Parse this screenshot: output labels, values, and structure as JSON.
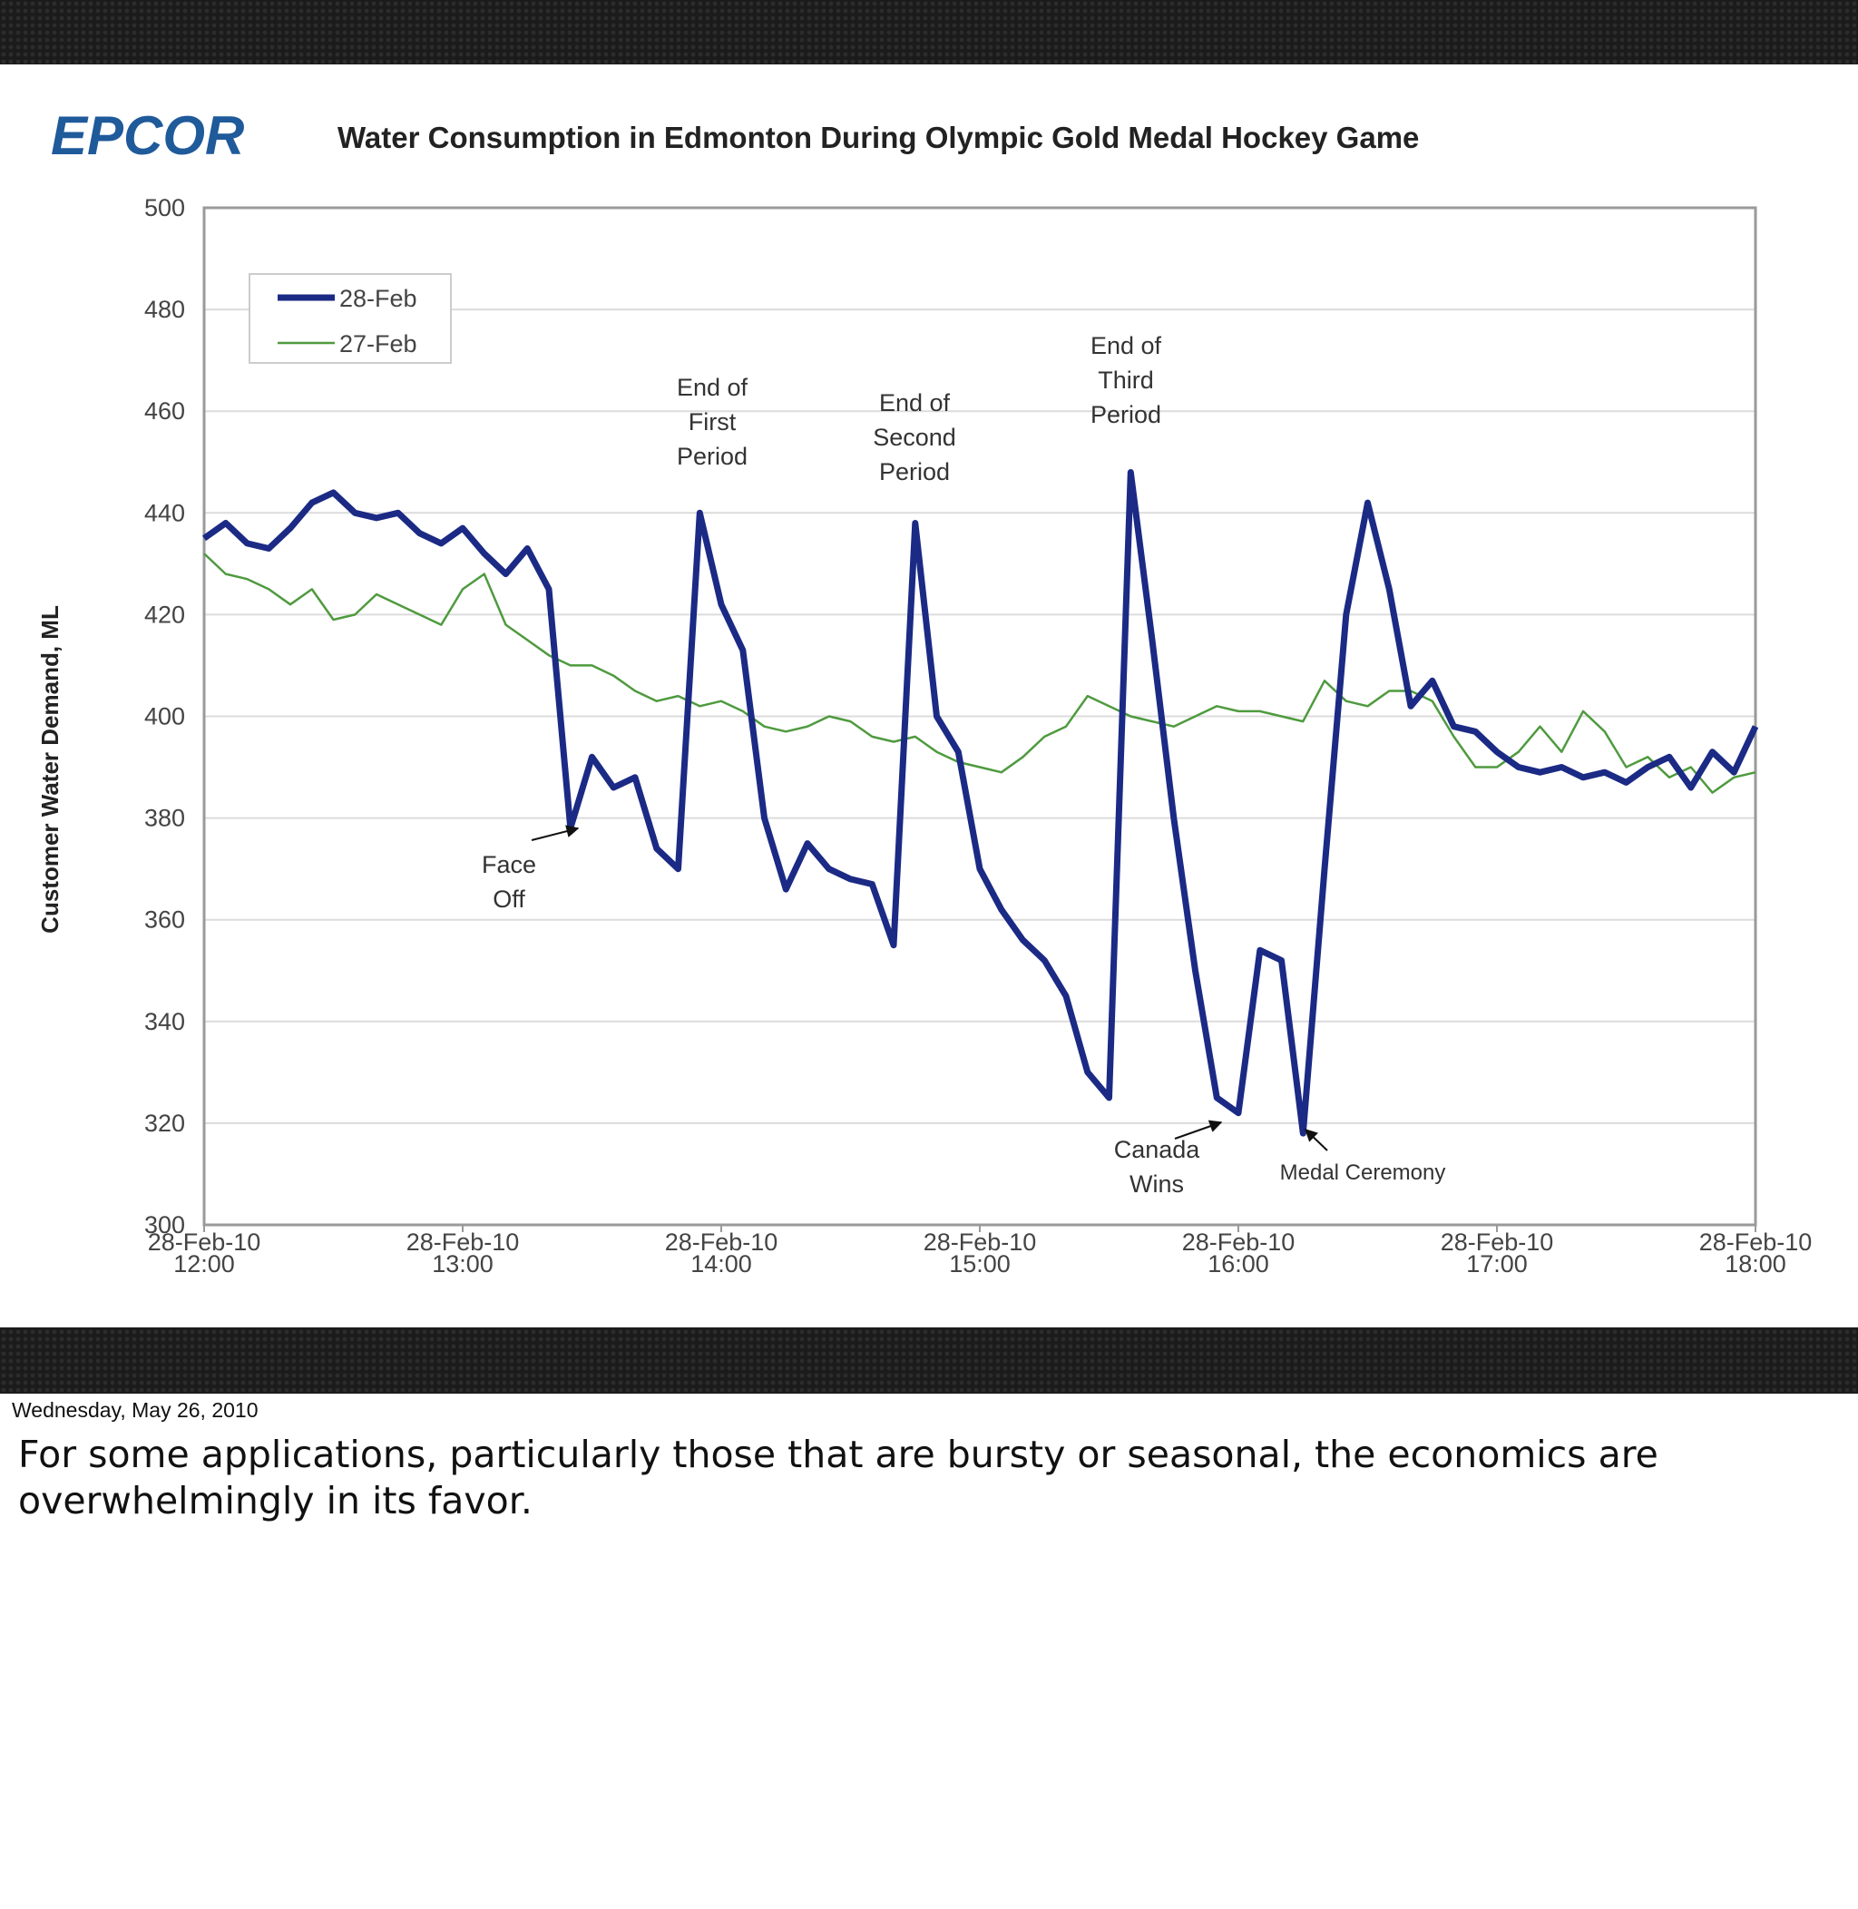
{
  "chart_data": {
    "type": "line",
    "logo": "EPCOR",
    "title": "Water Consumption in Edmonton During Olympic Gold Medal Hockey Game",
    "ylabel": "Customer Water Demand, ML",
    "x": [
      "12:00",
      "12:05",
      "12:10",
      "12:15",
      "12:20",
      "12:25",
      "12:30",
      "12:35",
      "12:40",
      "12:45",
      "12:50",
      "12:55",
      "13:00",
      "13:05",
      "13:10",
      "13:15",
      "13:20",
      "13:25",
      "13:30",
      "13:35",
      "13:40",
      "13:45",
      "13:50",
      "13:55",
      "14:00",
      "14:05",
      "14:10",
      "14:15",
      "14:20",
      "14:25",
      "14:30",
      "14:35",
      "14:40",
      "14:45",
      "14:50",
      "14:55",
      "15:00",
      "15:05",
      "15:10",
      "15:15",
      "15:20",
      "15:25",
      "15:30",
      "15:35",
      "15:40",
      "15:45",
      "15:50",
      "15:55",
      "16:00",
      "16:05",
      "16:10",
      "16:15",
      "16:20",
      "16:25",
      "16:30",
      "16:35",
      "16:40",
      "16:45",
      "16:50",
      "16:55",
      "17:00",
      "17:05",
      "17:10",
      "17:15",
      "17:20",
      "17:25",
      "17:30",
      "17:35",
      "17:40",
      "17:45",
      "17:50",
      "17:55",
      "18:00"
    ],
    "series": [
      {
        "name": "28-Feb",
        "color": "#1b2a84",
        "width": 7,
        "values": [
          435,
          438,
          434,
          433,
          437,
          442,
          444,
          440,
          439,
          440,
          436,
          434,
          437,
          432,
          428,
          433,
          425,
          378,
          392,
          386,
          388,
          374,
          370,
          440,
          422,
          413,
          380,
          366,
          375,
          370,
          368,
          367,
          355,
          438,
          400,
          393,
          370,
          362,
          356,
          352,
          345,
          330,
          325,
          448,
          415,
          380,
          350,
          325,
          322,
          354,
          352,
          318,
          370,
          420,
          442,
          425,
          402,
          407,
          398,
          397,
          393,
          390,
          389,
          390,
          388,
          389,
          387,
          390,
          392,
          386,
          393,
          389,
          398
        ]
      },
      {
        "name": "27-Feb",
        "color": "#4f9a3f",
        "width": 2.5,
        "values": [
          432,
          428,
          427,
          425,
          422,
          425,
          419,
          420,
          424,
          422,
          420,
          418,
          425,
          428,
          418,
          415,
          412,
          410,
          410,
          408,
          405,
          403,
          404,
          402,
          403,
          401,
          398,
          397,
          398,
          400,
          399,
          396,
          395,
          396,
          393,
          391,
          390,
          389,
          392,
          396,
          398,
          404,
          402,
          400,
          399,
          398,
          400,
          402,
          401,
          401,
          400,
          399,
          407,
          403,
          402,
          405,
          405,
          403,
          396,
          390,
          390,
          393,
          398,
          393,
          401,
          397,
          390,
          392,
          388,
          390,
          385,
          388,
          389
        ]
      }
    ],
    "xlim": [
      "12:00",
      "18:00"
    ],
    "xticks": [
      {
        "value": "12:00",
        "label": "28-Feb-10 12:00"
      },
      {
        "value": "13:00",
        "label": "28-Feb-10 13:00"
      },
      {
        "value": "14:00",
        "label": "28-Feb-10 14:00"
      },
      {
        "value": "15:00",
        "label": "28-Feb-10 15:00"
      },
      {
        "value": "16:00",
        "label": "28-Feb-10 16:00"
      },
      {
        "value": "17:00",
        "label": "28-Feb-10 17:00"
      },
      {
        "value": "18:00",
        "label": "28-Feb-10 18:00"
      }
    ],
    "ylim": [
      300,
      500
    ],
    "yticks": [
      300,
      320,
      340,
      360,
      380,
      400,
      420,
      440,
      460,
      480,
      500
    ],
    "grid": true,
    "legend": "upper left",
    "annotations": [
      {
        "lines": [
          "Face",
          "Off"
        ]
      },
      {
        "lines": [
          "End of",
          "First",
          "Period"
        ]
      },
      {
        "lines": [
          "End of",
          "Second",
          "Period"
        ]
      },
      {
        "lines": [
          "End of",
          "Third",
          "Period"
        ]
      },
      {
        "lines": [
          "Canada",
          "Wins"
        ]
      },
      {
        "lines": [
          "Medal Ceremony"
        ]
      }
    ]
  },
  "footer": {
    "date": "Wednesday, May 26, 2010",
    "caption": [
      "For some applications, particularly those that are bursty or seasonal, the economics are",
      "overwhelmingly in its favor."
    ]
  }
}
